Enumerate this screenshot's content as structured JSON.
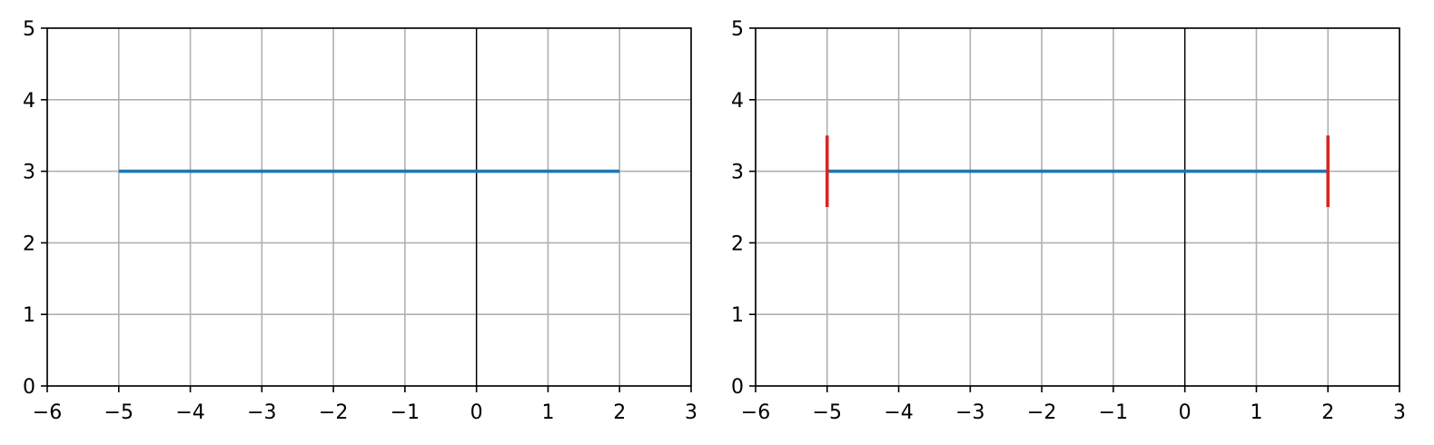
{
  "chart_data": [
    {
      "type": "line",
      "xlim": [
        -6,
        3
      ],
      "ylim": [
        0,
        5
      ],
      "xticks": [
        -6,
        -5,
        -4,
        -3,
        -2,
        -1,
        0,
        1,
        2,
        3
      ],
      "yticks": [
        0,
        1,
        2,
        3,
        4,
        5
      ],
      "xtick_labels": [
        "−6",
        "−5",
        "−4",
        "−3",
        "−2",
        "−1",
        "0",
        "1",
        "2",
        "3"
      ],
      "ytick_labels": [
        "0",
        "1",
        "2",
        "3",
        "4",
        "5"
      ],
      "grid": true,
      "zero_line_x": 0,
      "series": [
        {
          "x": [
            -5,
            2
          ],
          "y": [
            3,
            3
          ],
          "color": "#1f77b4"
        }
      ],
      "end_markers": []
    },
    {
      "type": "line",
      "xlim": [
        -6,
        3
      ],
      "ylim": [
        0,
        5
      ],
      "xticks": [
        -6,
        -5,
        -4,
        -3,
        -2,
        -1,
        0,
        1,
        2,
        3
      ],
      "yticks": [
        0,
        1,
        2,
        3,
        4,
        5
      ],
      "xtick_labels": [
        "−6",
        "−5",
        "−4",
        "−3",
        "−2",
        "−1",
        "0",
        "1",
        "2",
        "3"
      ],
      "ytick_labels": [
        "0",
        "1",
        "2",
        "3",
        "4",
        "5"
      ],
      "grid": true,
      "zero_line_x": 0,
      "series": [
        {
          "x": [
            -5,
            2
          ],
          "y": [
            3,
            3
          ],
          "color": "#1f77b4"
        }
      ],
      "end_markers": [
        {
          "x": -5,
          "y": [
            2.5,
            3.5
          ],
          "color": "#d62728"
        },
        {
          "x": 2,
          "y": [
            2.5,
            3.5
          ],
          "color": "#d62728"
        }
      ]
    }
  ]
}
